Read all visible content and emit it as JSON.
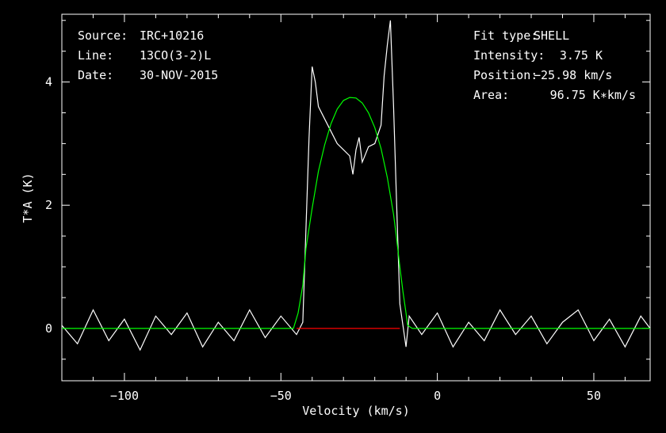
{
  "header_left": {
    "source_label": "Source:",
    "source_value": "IRC+10216",
    "line_label": "Line:",
    "line_value": "13CO(3-2)L",
    "date_label": "Date:",
    "date_value": "30-NOV-2015"
  },
  "header_right": {
    "fit_label": "Fit type:",
    "fit_value": "SHELL",
    "intensity_label": "Intensity:",
    "intensity_value": "3.75 K",
    "position_label": "Position:",
    "position_value": "−25.98 km/s",
    "area_label": "Area:",
    "area_value": "96.75 K∗km/s"
  },
  "chart_data": {
    "type": "line",
    "xlabel": "Velocity (km/s)",
    "ylabel": "T*A (K)",
    "xlim": [
      -120,
      68
    ],
    "ylim": [
      -0.85,
      5.1
    ],
    "xticks": [
      -100,
      -50,
      0,
      50
    ],
    "xtick_labels": [
      "−100",
      "−50",
      "0",
      "50"
    ],
    "yticks": [
      0,
      2,
      4
    ],
    "ytick_labels": [
      "0",
      "2",
      "4"
    ],
    "series": [
      {
        "name": "",
        "color": "#ffffff",
        "x": [
          -120,
          -115,
          -110,
          -105,
          -100,
          -95,
          -90,
          -85,
          -80,
          -75,
          -70,
          -65,
          -60,
          -55,
          -50,
          -45,
          -43,
          -41,
          -40,
          -39,
          -38,
          -36,
          -34,
          -32,
          -30,
          -28,
          -27,
          -26,
          -25,
          -24,
          -22,
          -20,
          -18,
          -17,
          -16,
          -15,
          -14,
          -13,
          -12,
          -11,
          -10,
          -9,
          -5,
          0,
          5,
          10,
          15,
          20,
          25,
          30,
          35,
          40,
          45,
          50,
          55,
          60,
          65,
          68
        ],
        "y": [
          0.05,
          -0.25,
          0.3,
          -0.2,
          0.15,
          -0.35,
          0.2,
          -0.1,
          0.25,
          -0.3,
          0.1,
          -0.2,
          0.3,
          -0.15,
          0.2,
          -0.1,
          0.1,
          3.1,
          4.25,
          4.0,
          3.6,
          3.4,
          3.2,
          3.0,
          2.9,
          2.8,
          2.5,
          2.9,
          3.1,
          2.7,
          2.95,
          3.0,
          3.3,
          4.1,
          4.6,
          5.0,
          3.6,
          2.0,
          0.4,
          0.05,
          -0.3,
          0.2,
          -0.1,
          0.25,
          -0.3,
          0.1,
          -0.2,
          0.3,
          -0.1,
          0.2,
          -0.25,
          0.1,
          0.3,
          -0.2,
          0.15,
          -0.3,
          0.2,
          0.0
        ]
      },
      {
        "name": "",
        "color": "#00ff00",
        "x": [
          -120,
          -46,
          -44.5,
          -43,
          -42,
          -40,
          -38,
          -36,
          -34,
          -32,
          -30,
          -28,
          -26,
          -24,
          -22,
          -20,
          -18,
          -16,
          -14,
          -13,
          -12,
          -11,
          -10,
          -9.5,
          -8,
          68
        ],
        "y": [
          0,
          0,
          0.25,
          0.7,
          1.3,
          1.95,
          2.55,
          2.98,
          3.32,
          3.56,
          3.7,
          3.75,
          3.74,
          3.66,
          3.5,
          3.26,
          2.92,
          2.45,
          1.85,
          1.45,
          1.0,
          0.6,
          0.25,
          0.05,
          0,
          0
        ]
      },
      {
        "name": "",
        "color": "#ff0000",
        "x": [
          -45,
          -12
        ],
        "y": [
          0,
          0
        ]
      }
    ]
  }
}
